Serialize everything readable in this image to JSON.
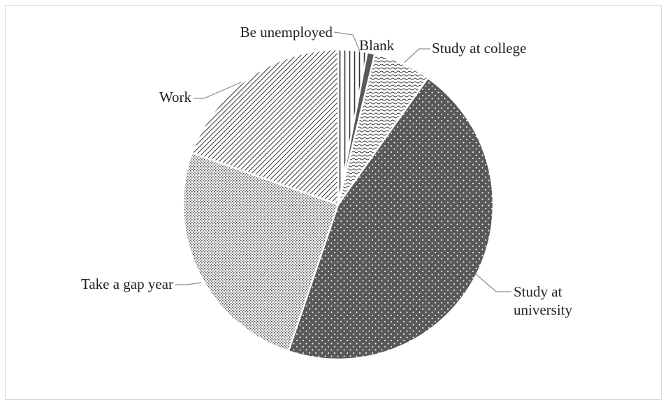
{
  "chart_data": {
    "type": "pie",
    "title": "",
    "legend": "none",
    "categories": [
      "Be unemployed",
      "Blank",
      "Study at college",
      "Study at university",
      "Take a gap year",
      "Work"
    ],
    "values": [
      3.0,
      0.8,
      6.0,
      45.4,
      25.2,
      19.6
    ],
    "unit": "percent (estimated from slice angles)",
    "labels": [
      {
        "lines": [
          "Be unemployed"
        ]
      },
      {
        "lines": [
          "Blank"
        ]
      },
      {
        "lines": [
          "Study at college"
        ]
      },
      {
        "lines": [
          "Study at",
          "university"
        ]
      },
      {
        "lines": [
          "Take a gap year"
        ]
      },
      {
        "lines": [
          "Work"
        ]
      }
    ],
    "colors": {
      "dark_fill": "#595959",
      "pattern_ink": "#333333",
      "background": "#ffffff",
      "leader": "#8c8c8c"
    }
  }
}
